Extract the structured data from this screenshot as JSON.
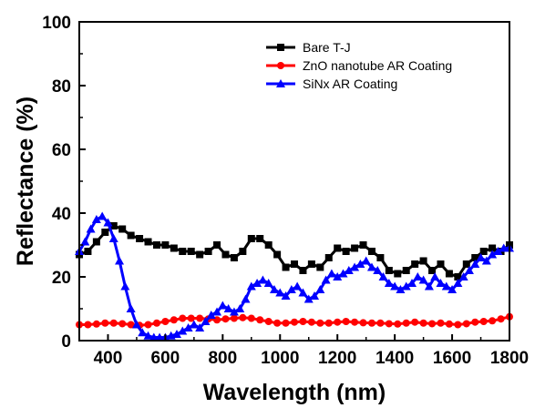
{
  "chart_data": {
    "type": "line",
    "title": "",
    "xlabel": "Wavelength (nm)",
    "ylabel": "Reflectance (%)",
    "xlim": [
      300,
      1800
    ],
    "ylim": [
      0,
      100
    ],
    "xticks": [
      400,
      600,
      800,
      1000,
      1200,
      1400,
      1600,
      1800
    ],
    "yticks": [
      0,
      20,
      40,
      60,
      80,
      100
    ],
    "grid": false,
    "legend_position": "top-right",
    "series": [
      {
        "name": "Bare T-J",
        "color": "#000000",
        "marker": "square",
        "x": [
          300,
          330,
          360,
          390,
          420,
          450,
          480,
          510,
          540,
          570,
          600,
          630,
          660,
          690,
          720,
          750,
          780,
          810,
          840,
          870,
          900,
          930,
          960,
          990,
          1020,
          1050,
          1080,
          1110,
          1140,
          1170,
          1200,
          1230,
          1260,
          1290,
          1320,
          1350,
          1380,
          1410,
          1440,
          1470,
          1500,
          1530,
          1560,
          1590,
          1620,
          1650,
          1680,
          1710,
          1740,
          1770,
          1800
        ],
        "y": [
          27,
          28,
          31,
          34,
          36,
          35,
          33,
          32,
          31,
          30,
          30,
          29,
          28,
          28,
          27,
          28,
          30,
          27,
          26,
          28,
          32,
          32,
          30,
          27,
          23,
          24,
          22,
          24,
          23,
          26,
          29,
          28,
          29,
          30,
          28,
          26,
          22,
          21,
          22,
          24,
          25,
          22,
          24,
          21,
          20,
          24,
          26,
          28,
          29,
          28,
          30
        ]
      },
      {
        "name": "ZnO nanotube AR Coating",
        "color": "#ff0000",
        "marker": "circle",
        "x": [
          300,
          330,
          360,
          390,
          420,
          450,
          480,
          510,
          540,
          570,
          600,
          630,
          660,
          690,
          720,
          750,
          780,
          810,
          840,
          870,
          900,
          930,
          960,
          990,
          1020,
          1050,
          1080,
          1110,
          1140,
          1170,
          1200,
          1230,
          1260,
          1290,
          1320,
          1350,
          1380,
          1410,
          1440,
          1470,
          1500,
          1530,
          1560,
          1590,
          1620,
          1650,
          1680,
          1710,
          1740,
          1770,
          1800
        ],
        "y": [
          5,
          5,
          5.2,
          5.5,
          5.5,
          5.3,
          5,
          4.8,
          5,
          5.5,
          6,
          6.5,
          7,
          7,
          7,
          6.8,
          6.5,
          6.8,
          7,
          7.2,
          7,
          6.5,
          6,
          5.5,
          5.5,
          5.8,
          6,
          5.8,
          5.5,
          5.5,
          5.8,
          6,
          5.8,
          5.6,
          5.5,
          5.5,
          5.3,
          5.2,
          5.5,
          5.8,
          5.5,
          5.3,
          5.5,
          5.2,
          5,
          5.3,
          5.8,
          6,
          6.2,
          6.8,
          7.5
        ]
      },
      {
        "name": "SiNx AR Coating",
        "color": "#0000ff",
        "marker": "triangle",
        "x": [
          300,
          320,
          340,
          360,
          380,
          400,
          420,
          440,
          460,
          480,
          500,
          520,
          540,
          560,
          580,
          600,
          620,
          640,
          660,
          680,
          700,
          720,
          740,
          760,
          780,
          800,
          820,
          840,
          860,
          880,
          900,
          920,
          940,
          960,
          980,
          1000,
          1020,
          1040,
          1060,
          1080,
          1100,
          1120,
          1140,
          1160,
          1180,
          1200,
          1220,
          1240,
          1260,
          1280,
          1300,
          1320,
          1340,
          1360,
          1380,
          1400,
          1420,
          1440,
          1460,
          1480,
          1500,
          1520,
          1540,
          1560,
          1580,
          1600,
          1620,
          1640,
          1660,
          1680,
          1700,
          1720,
          1740,
          1760,
          1780,
          1800
        ],
        "y": [
          28,
          31,
          35,
          38,
          39,
          37,
          32,
          25,
          17,
          10,
          5,
          2.5,
          1.5,
          1,
          1,
          1,
          1.5,
          2,
          3,
          4,
          5,
          4,
          6,
          8,
          9,
          11,
          10,
          9,
          10,
          13,
          17,
          18,
          19,
          18,
          16,
          15,
          14,
          16,
          17,
          15,
          13,
          14,
          16,
          19,
          21,
          20,
          21,
          22,
          23,
          24,
          25,
          23,
          22,
          20,
          18,
          17,
          16,
          17,
          18,
          20,
          19,
          17,
          20,
          18,
          17,
          16,
          18,
          20,
          22,
          24,
          26,
          25,
          27,
          28,
          29,
          29
        ]
      }
    ]
  }
}
